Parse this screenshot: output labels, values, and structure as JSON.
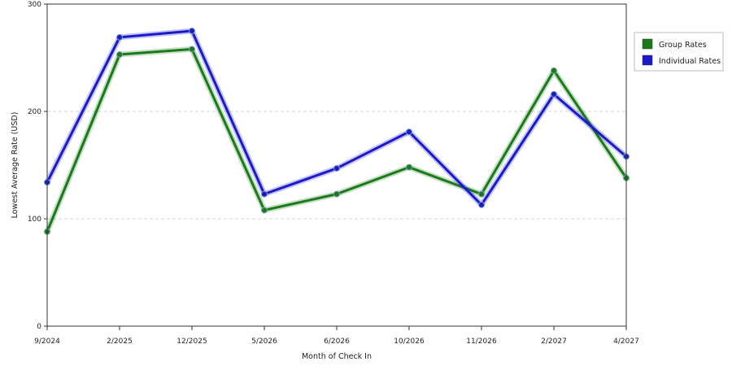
{
  "chart_data": {
    "type": "line",
    "categories": [
      "9/2024",
      "2/2025",
      "12/2025",
      "5/2026",
      "6/2026",
      "10/2026",
      "11/2026",
      "2/2027",
      "4/2027"
    ],
    "series": [
      {
        "name": "Group Rates",
        "color": "#1a7a1a",
        "values": [
          88,
          253,
          258,
          108,
          123,
          148,
          123,
          238,
          138
        ]
      },
      {
        "name": "Individual Rates",
        "color": "#1a1acc",
        "values": [
          134,
          269,
          275,
          123,
          147,
          181,
          113,
          216,
          158
        ]
      }
    ],
    "xlabel": "Month of Check In",
    "ylabel": "Lowest Average Rate (USD)",
    "ylim": [
      0,
      300
    ],
    "yticks": [
      0,
      100,
      200,
      300
    ],
    "grid": true,
    "legend_position": "right"
  }
}
